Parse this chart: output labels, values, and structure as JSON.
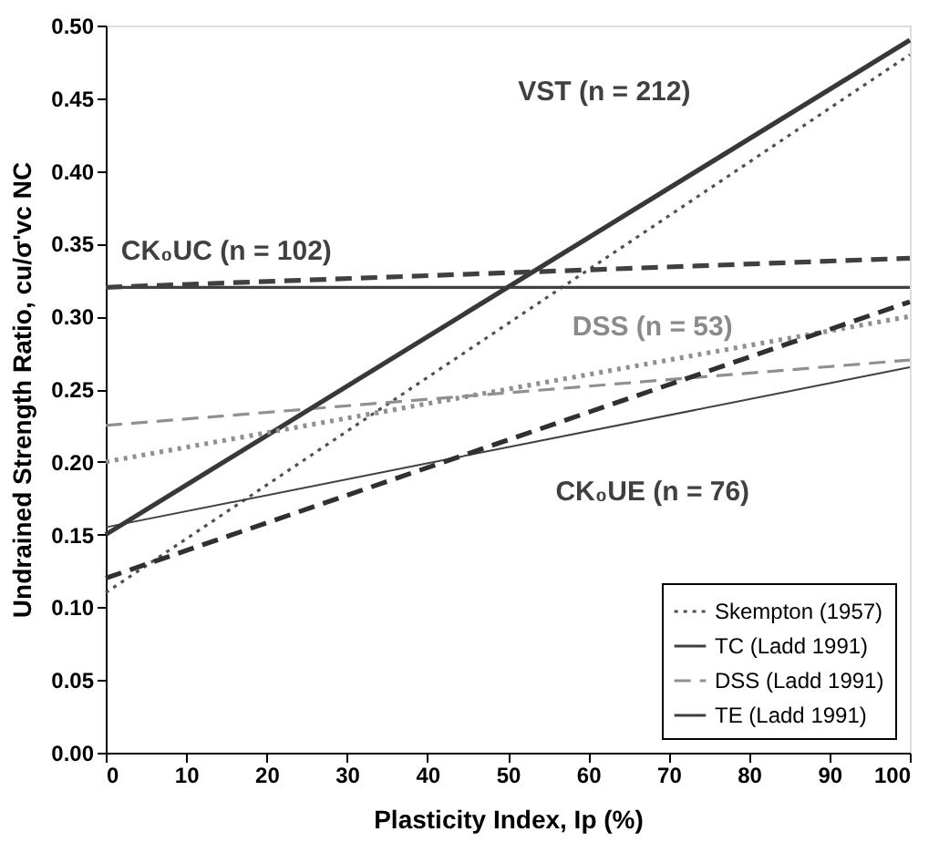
{
  "chart_data": {
    "type": "line",
    "xlabel": "Plasticity Index, Ip (%)",
    "ylabel": "Undrained Strength Ratio, cu/σ'vc NC",
    "x": [
      0,
      100
    ],
    "series": [
      {
        "name": "Skempton (1957)",
        "color": "#505050",
        "line_style": "dotted",
        "values": [
          0.11,
          0.48
        ]
      },
      {
        "name": "TC (Ladd 1991)",
        "color": "#404040",
        "line_style": "solid",
        "values": [
          0.32,
          0.32
        ]
      },
      {
        "name": "DSS (Ladd 1991)",
        "color": "#909090",
        "line_style": "dashed",
        "values": [
          0.225,
          0.27
        ]
      },
      {
        "name": "TE (Ladd 1991)",
        "color": "#404040",
        "line_style": "solid",
        "values": [
          0.155,
          0.265
        ]
      },
      {
        "color": "#383838",
        "line_style": "solid",
        "values": [
          0.15,
          0.49
        ]
      },
      {
        "color": "#404040",
        "line_style": "dashed",
        "values": [
          0.32,
          0.34
        ]
      },
      {
        "color": "#909090",
        "line_style": "dotted",
        "values": [
          0.2,
          0.3
        ]
      },
      {
        "color": "#303030",
        "line_style": "dashed",
        "values": [
          0.12,
          0.31
        ]
      }
    ],
    "annotations": [
      "VST (n = 212)",
      "CK₀UC (n = 102)",
      "DSS (n = 53)",
      "CK₀UE (n = 76)"
    ],
    "xlim": [
      0,
      100
    ],
    "xticks": [
      0,
      10,
      20,
      30,
      40,
      50,
      60,
      70,
      80,
      90,
      100
    ],
    "ylim": [
      0,
      0.5
    ],
    "yticks": [
      {
        "value": 0,
        "label": "0.00"
      },
      {
        "value": 0.05,
        "label": "0.05"
      },
      {
        "value": 0.1,
        "label": "0.10"
      },
      {
        "value": 0.15,
        "label": "0.15"
      },
      {
        "value": 0.2,
        "label": "0.20"
      },
      {
        "value": 0.25,
        "label": "0.25"
      },
      {
        "value": 0.3,
        "label": "0.30"
      },
      {
        "value": 0.35,
        "label": "0.35"
      },
      {
        "value": 0.4,
        "label": "0.40"
      },
      {
        "value": 0.45,
        "label": "0.45"
      },
      {
        "value": 0.5,
        "label": "0.50"
      }
    ],
    "grid": false,
    "legend": "bottom right",
    "marker": "none"
  }
}
